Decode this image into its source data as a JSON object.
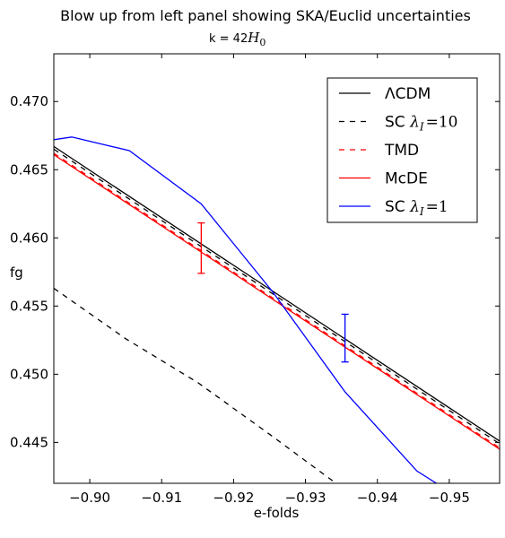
{
  "chart_data": {
    "type": "line",
    "title": "Blow up from left panel showing SKA/Euclid uncertainties",
    "subtitle": {
      "prefix": "k = 42",
      "math": "H",
      "subscript": "0"
    },
    "xlabel": "e-folds",
    "ylabel": "fg",
    "xlim": [
      -0.895,
      -0.957
    ],
    "ylim": [
      0.442,
      0.4735
    ],
    "x_ticks": [
      -0.9,
      -0.91,
      -0.92,
      -0.93,
      -0.94,
      -0.95
    ],
    "x_tick_labels": [
      "−0.90",
      "−0.91",
      "−0.92",
      "−0.93",
      "−0.94",
      "−0.95"
    ],
    "y_ticks": [
      0.445,
      0.45,
      0.455,
      0.46,
      0.465,
      0.47
    ],
    "y_tick_labels": [
      "0.445",
      "0.450",
      "0.455",
      "0.460",
      "0.465",
      "0.470"
    ],
    "legend_position": "upper-right",
    "series": [
      {
        "key": "lcdm",
        "name": "ΛCDM",
        "color": "#000000",
        "dash": "solid",
        "x": [
          -0.895,
          -0.957
        ],
        "y": [
          0.4667,
          0.4451
        ]
      },
      {
        "key": "sc10",
        "name": "SC λI=10",
        "color": "#000000",
        "dash": "dashed",
        "x": [
          -0.895,
          -0.957
        ],
        "y": [
          0.4665,
          0.4449
        ]
      },
      {
        "key": "tmd",
        "name": "TMD",
        "color": "#ff0000",
        "dash": "dashed",
        "x": [
          -0.895,
          -0.957
        ],
        "y": [
          0.4662,
          0.4446
        ]
      },
      {
        "key": "mcde",
        "name": "McDE",
        "color": "#ff0000",
        "dash": "solid",
        "x": [
          -0.895,
          -0.957
        ],
        "y": [
          0.4661,
          0.4445
        ]
      },
      {
        "key": "sc1",
        "name": "SC λI=1",
        "color": "#0000ff",
        "dash": "solid",
        "x": [
          -0.895,
          -0.8975,
          -0.9055,
          -0.9155,
          -0.9255,
          -0.9355,
          -0.9455,
          -0.9485
        ],
        "y": [
          0.4672,
          0.4674,
          0.4664,
          0.4625,
          0.456,
          0.4487,
          0.4429,
          0.4419
        ]
      },
      {
        "key": "sc10_low",
        "name": "",
        "color": "#000000",
        "dash": "dashed",
        "x": [
          -0.895,
          -0.905,
          -0.915,
          -0.925,
          -0.9345
        ],
        "y": [
          0.4563,
          0.4526,
          0.4494,
          0.4456,
          0.4419
        ]
      }
    ],
    "legend_entries": [
      {
        "series": "lcdm",
        "label": "ΛCDM",
        "math": false
      },
      {
        "series": "sc10",
        "prefix": "SC ",
        "sym": "λ",
        "sub": "I",
        "suffix": "=10",
        "math": true
      },
      {
        "series": "tmd",
        "label": "TMD",
        "math": false
      },
      {
        "series": "mcde",
        "label": "McDE",
        "math": false
      },
      {
        "series": "sc1",
        "prefix": "SC ",
        "sym": "λ",
        "sub": "I",
        "suffix": "=1",
        "math": true
      }
    ],
    "error_bars": [
      {
        "color": "#ff0000",
        "x": -0.9155,
        "y_low": 0.4574,
        "y_high": 0.4611
      },
      {
        "color": "#0000ff",
        "x": -0.9355,
        "y_low": 0.4509,
        "y_high": 0.4544
      }
    ]
  }
}
